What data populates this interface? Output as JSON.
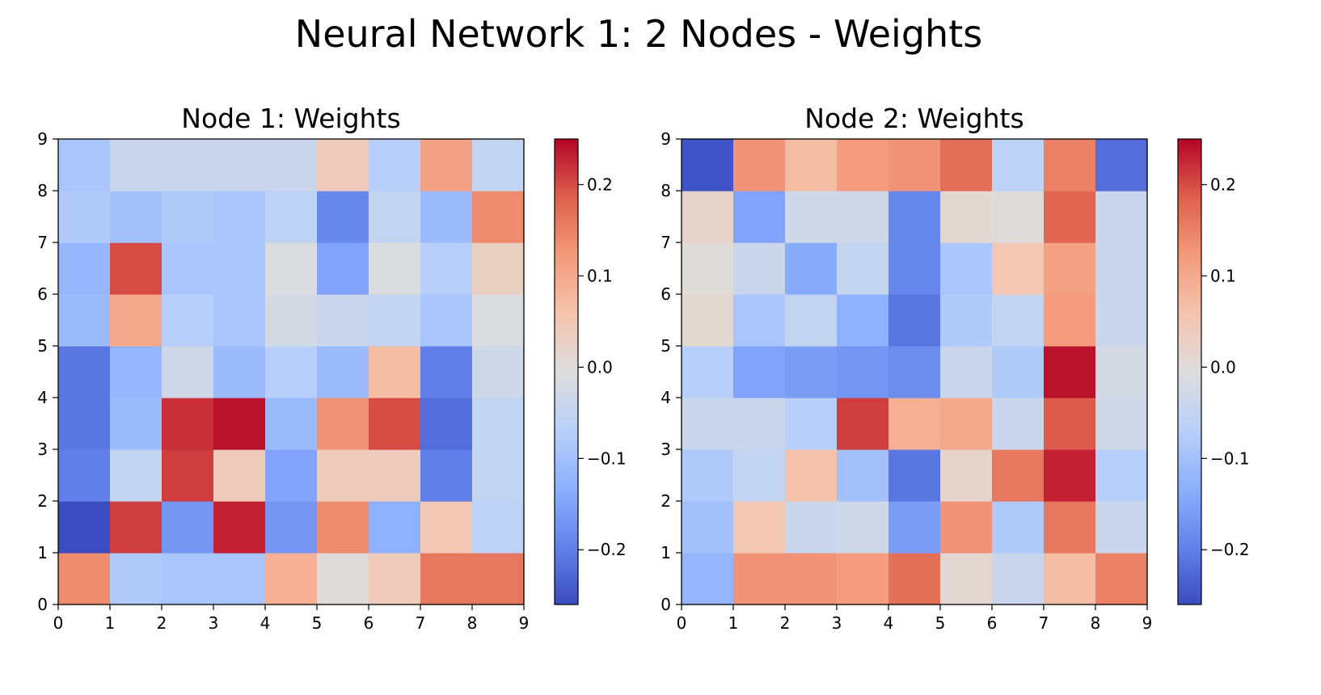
{
  "title": "Neural Network 1: 2 Nodes - Weights",
  "chart_data": [
    {
      "type": "heatmap",
      "title": "Node 1: Weights",
      "xlabel": "",
      "ylabel": "",
      "xlim": [
        0,
        9
      ],
      "ylim": [
        0,
        9
      ],
      "xticks": [
        "0",
        "1",
        "2",
        "3",
        "4",
        "5",
        "6",
        "7",
        "8",
        "9"
      ],
      "yticks": [
        "0",
        "1",
        "2",
        "3",
        "4",
        "5",
        "6",
        "7",
        "8",
        "9"
      ],
      "colormap": "coolwarm",
      "vmin": -0.26,
      "vmax": 0.25,
      "colorbar_ticks": [
        "−0.2",
        "−0.1",
        "0.0",
        "0.1",
        "0.2"
      ],
      "colorbar_tick_values": [
        -0.2,
        -0.1,
        0.0,
        0.1,
        0.2
      ],
      "rows_bottom_to_top": [
        [
          0.14,
          -0.08,
          -0.09,
          -0.09,
          0.09,
          0.0,
          0.04,
          0.16,
          0.16
        ],
        [
          -0.26,
          0.21,
          -0.17,
          0.23,
          -0.17,
          0.14,
          -0.13,
          0.05,
          -0.06
        ],
        [
          -0.2,
          -0.05,
          0.21,
          0.04,
          -0.15,
          0.04,
          0.04,
          -0.2,
          -0.05
        ],
        [
          -0.21,
          -0.11,
          0.22,
          0.24,
          -0.11,
          0.13,
          0.2,
          -0.22,
          -0.05
        ],
        [
          -0.21,
          -0.12,
          -0.03,
          -0.11,
          -0.07,
          -0.11,
          0.07,
          -0.2,
          -0.03
        ],
        [
          -0.11,
          0.1,
          -0.07,
          -0.09,
          -0.02,
          -0.04,
          -0.05,
          -0.09,
          -0.01
        ],
        [
          -0.12,
          0.2,
          -0.09,
          -0.09,
          -0.01,
          -0.15,
          -0.01,
          -0.07,
          0.03
        ],
        [
          -0.08,
          -0.1,
          -0.08,
          -0.09,
          -0.06,
          -0.19,
          -0.05,
          -0.11,
          0.14
        ],
        [
          -0.09,
          -0.04,
          -0.04,
          -0.04,
          -0.04,
          0.04,
          -0.07,
          0.11,
          -0.05
        ]
      ]
    },
    {
      "type": "heatmap",
      "title": "Node 2: Weights",
      "xlabel": "",
      "ylabel": "",
      "xlim": [
        0,
        9
      ],
      "ylim": [
        0,
        9
      ],
      "xticks": [
        "0",
        "1",
        "2",
        "3",
        "4",
        "5",
        "6",
        "7",
        "8",
        "9"
      ],
      "yticks": [
        "0",
        "1",
        "2",
        "3",
        "4",
        "5",
        "6",
        "7",
        "8",
        "9"
      ],
      "colormap": "coolwarm",
      "vmin": -0.26,
      "vmax": 0.25,
      "colorbar_ticks": [
        "−0.2",
        "−0.1",
        "0.0",
        "0.1",
        "0.2"
      ],
      "colorbar_tick_values": [
        -0.2,
        -0.1,
        0.0,
        0.1,
        0.2
      ],
      "rows_bottom_to_top": [
        [
          -0.12,
          0.13,
          0.13,
          0.12,
          0.17,
          0.01,
          -0.04,
          0.07,
          0.15
        ],
        [
          -0.1,
          0.05,
          -0.04,
          -0.03,
          -0.16,
          0.13,
          -0.08,
          0.16,
          -0.04
        ],
        [
          -0.08,
          -0.05,
          0.06,
          -0.1,
          -0.21,
          0.02,
          0.16,
          0.23,
          -0.07
        ],
        [
          -0.04,
          -0.04,
          -0.07,
          0.21,
          0.09,
          0.1,
          -0.04,
          0.19,
          -0.03
        ],
        [
          -0.07,
          -0.15,
          -0.16,
          -0.17,
          -0.18,
          -0.04,
          -0.08,
          0.24,
          -0.02
        ],
        [
          0.01,
          -0.09,
          -0.05,
          -0.13,
          -0.21,
          -0.08,
          -0.05,
          0.12,
          -0.04
        ],
        [
          0.0,
          -0.04,
          -0.14,
          -0.05,
          -0.19,
          -0.09,
          0.05,
          0.11,
          -0.04
        ],
        [
          0.02,
          -0.15,
          -0.03,
          -0.03,
          -0.19,
          0.01,
          0.0,
          0.18,
          -0.04
        ],
        [
          -0.25,
          0.13,
          0.07,
          0.12,
          0.13,
          0.17,
          -0.06,
          0.15,
          -0.22
        ]
      ]
    }
  ]
}
